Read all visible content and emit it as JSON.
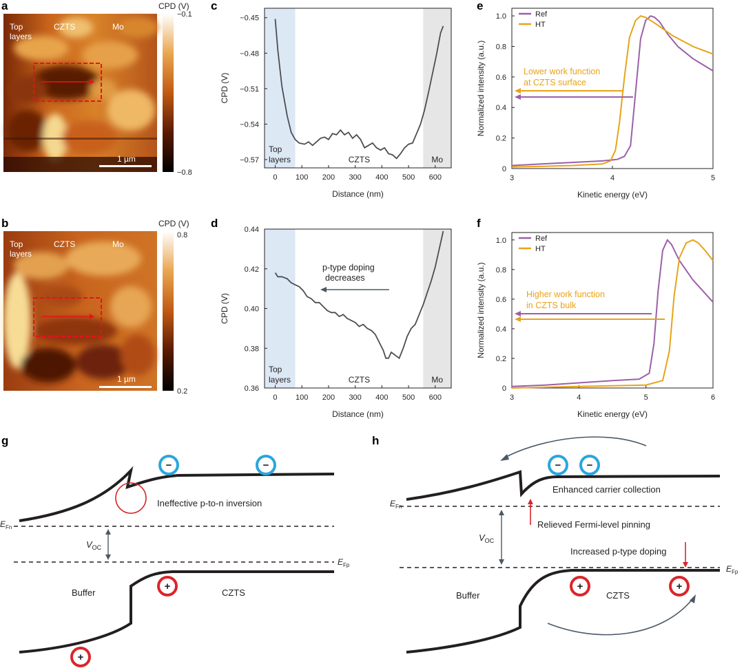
{
  "panels": {
    "a": {
      "label": "a",
      "cbar_title": "CPD (V)",
      "cbar_max": "−0.1",
      "cbar_min": "−0.8",
      "regions": [
        "Top\nlayers",
        "CZTS",
        "Mo"
      ],
      "region_labels": {
        "top": "Top",
        "top2": "layers",
        "czts": "CZTS",
        "mo": "Mo"
      },
      "scale_bar": "1 µm"
    },
    "b": {
      "label": "b",
      "cbar_title": "CPD (V)",
      "cbar_max": "0.8",
      "cbar_min": "0.2",
      "region_labels": {
        "top": "Top",
        "top2": "layers",
        "czts": "CZTS",
        "mo": "Mo"
      },
      "scale_bar": "1 µm"
    },
    "c": {
      "label": "c"
    },
    "d": {
      "label": "d",
      "annotation1": "p-type doping",
      "annotation2": "decreases"
    },
    "e": {
      "label": "e",
      "annotation1": "Lower work function",
      "annotation2": "at CZTS surface"
    },
    "f": {
      "label": "f",
      "annotation1": "Higher work function",
      "annotation2": "in CZTS bulk"
    },
    "g": {
      "label": "g",
      "efn": "E",
      "efn_sub": "Fn",
      "efp": "E",
      "efp_sub": "Fp",
      "voc": "V",
      "voc_sub": "OC",
      "buffer": "Buffer",
      "czts": "CZTS",
      "inversion": "Ineffective p-to-n inversion"
    },
    "h": {
      "label": "h",
      "efn": "E",
      "efn_sub": "Fn",
      "efp": "E",
      "efp_sub": "Fp",
      "voc": "V",
      "voc_sub": "OC",
      "buffer": "Buffer",
      "czts": "CZTS",
      "collection": "Enhanced carrier collection",
      "pinning": "Relieved Fermi-level pinning",
      "doping": "Increased p-type doping"
    }
  },
  "colors": {
    "line": "#4d4d4f",
    "ref": "#9b5fa8",
    "ht": "#e8a317",
    "top_band": "#dde8f5",
    "mo_band": "#e6e6e6",
    "red": "#d9262b",
    "blue": "#2aa6dc",
    "arrow": "#4a5866"
  },
  "chart_data": [
    {
      "id": "c",
      "type": "line",
      "xlabel": "Distance (nm)",
      "ylabel": "CPD (V)",
      "xlim": [
        -40,
        660
      ],
      "ylim": [
        -0.577,
        -0.442
      ],
      "xticks": [
        0,
        100,
        200,
        300,
        400,
        500,
        600
      ],
      "yticks": [
        -0.45,
        -0.48,
        -0.51,
        -0.54,
        -0.57
      ],
      "ytick_labels": [
        "−0.45",
        "−0.48",
        "−0.51",
        "−0.54",
        "−0.57"
      ],
      "regions": [
        {
          "label": "Top layers",
          "label1": "Top",
          "label2": "layers",
          "x0": -40,
          "x1": 75
        },
        {
          "label": "CZTS",
          "x0": 75,
          "x1": 555
        },
        {
          "label": "Mo",
          "x0": 555,
          "x1": 660
        }
      ],
      "x": [
        0,
        10,
        25,
        45,
        60,
        75,
        90,
        110,
        125,
        140,
        155,
        170,
        185,
        200,
        215,
        230,
        245,
        260,
        275,
        290,
        305,
        320,
        335,
        350,
        365,
        380,
        395,
        410,
        425,
        440,
        455,
        470,
        485,
        500,
        515,
        530,
        545,
        560,
        575,
        590,
        605,
        620,
        630
      ],
      "y": [
        -0.451,
        -0.478,
        -0.508,
        -0.533,
        -0.547,
        -0.553,
        -0.556,
        -0.557,
        -0.555,
        -0.558,
        -0.555,
        -0.552,
        -0.551,
        -0.553,
        -0.548,
        -0.549,
        -0.545,
        -0.549,
        -0.547,
        -0.552,
        -0.549,
        -0.553,
        -0.56,
        -0.558,
        -0.556,
        -0.56,
        -0.562,
        -0.56,
        -0.565,
        -0.566,
        -0.569,
        -0.565,
        -0.56,
        -0.557,
        -0.556,
        -0.548,
        -0.54,
        -0.528,
        -0.513,
        -0.497,
        -0.481,
        -0.463,
        -0.457
      ]
    },
    {
      "id": "d",
      "type": "line",
      "xlabel": "Distance (nm)",
      "ylabel": "CPD (V)",
      "xlim": [
        -40,
        660
      ],
      "ylim": [
        0.36,
        0.44
      ],
      "xticks": [
        0,
        100,
        200,
        300,
        400,
        500,
        600
      ],
      "yticks": [
        0.36,
        0.38,
        0.4,
        0.42,
        0.44
      ],
      "ytick_labels": [
        "0.36",
        "0.38",
        "0.40",
        "0.42",
        "0.44"
      ],
      "regions": [
        {
          "label": "Top layers",
          "label1": "Top",
          "label2": "layers",
          "x0": -40,
          "x1": 75
        },
        {
          "label": "CZTS",
          "x0": 75,
          "x1": 555
        },
        {
          "label": "Mo",
          "x0": 555,
          "x1": 660
        }
      ],
      "x": [
        0,
        10,
        25,
        45,
        60,
        75,
        90,
        105,
        120,
        135,
        150,
        165,
        180,
        195,
        210,
        225,
        240,
        255,
        270,
        285,
        300,
        315,
        330,
        345,
        360,
        375,
        390,
        405,
        415,
        425,
        435,
        445,
        455,
        465,
        480,
        495,
        510,
        525,
        540,
        555,
        570,
        585,
        600,
        615,
        630
      ],
      "y": [
        0.418,
        0.416,
        0.416,
        0.415,
        0.413,
        0.412,
        0.411,
        0.409,
        0.406,
        0.405,
        0.403,
        0.403,
        0.401,
        0.399,
        0.398,
        0.398,
        0.396,
        0.397,
        0.395,
        0.394,
        0.393,
        0.391,
        0.392,
        0.39,
        0.389,
        0.387,
        0.383,
        0.379,
        0.375,
        0.375,
        0.378,
        0.377,
        0.376,
        0.375,
        0.38,
        0.386,
        0.39,
        0.392,
        0.397,
        0.402,
        0.408,
        0.414,
        0.421,
        0.43,
        0.439
      ]
    },
    {
      "id": "e",
      "type": "line",
      "xlabel": "Kinetic energy (eV)",
      "ylabel": "Normalized intensity (a.u.)",
      "xlim": [
        3,
        5
      ],
      "ylim": [
        0,
        1.05
      ],
      "xticks": [
        3,
        4,
        5
      ],
      "yticks": [
        0,
        0.2,
        0.4,
        0.6,
        0.8,
        1.0
      ],
      "ytick_labels": [
        "0",
        "0.2",
        "0.4",
        "0.6",
        "0.8",
        "1.0"
      ],
      "legend": "top-left",
      "series": [
        {
          "name": "Ref",
          "x": [
            3.0,
            3.3,
            3.6,
            3.9,
            4.05,
            4.12,
            4.18,
            4.23,
            4.28,
            4.33,
            4.38,
            4.42,
            4.47,
            4.55,
            4.65,
            4.8,
            5.0
          ],
          "y": [
            0.02,
            0.03,
            0.04,
            0.05,
            0.06,
            0.08,
            0.15,
            0.5,
            0.85,
            0.97,
            1.0,
            0.99,
            0.96,
            0.88,
            0.8,
            0.72,
            0.64
          ]
        },
        {
          "name": "HT",
          "x": [
            3.0,
            3.3,
            3.6,
            3.9,
            3.98,
            4.03,
            4.07,
            4.12,
            4.17,
            4.23,
            4.28,
            4.33,
            4.38,
            4.45,
            4.6,
            4.8,
            5.0
          ],
          "y": [
            0.01,
            0.015,
            0.02,
            0.03,
            0.05,
            0.12,
            0.3,
            0.6,
            0.86,
            0.97,
            1.0,
            0.99,
            0.97,
            0.94,
            0.87,
            0.8,
            0.75
          ]
        }
      ]
    },
    {
      "id": "f",
      "type": "line",
      "xlabel": "Kinetic energy (eV)",
      "ylabel": "Normalized intensity (a.u.)",
      "xlim": [
        3,
        6
      ],
      "ylim": [
        0,
        1.05
      ],
      "xticks": [
        3,
        4,
        5,
        6
      ],
      "yticks": [
        0,
        0.2,
        0.4,
        0.6,
        0.8,
        1.0
      ],
      "ytick_labels": [
        "0",
        "0.2",
        "0.4",
        "0.6",
        "0.8",
        "1.0"
      ],
      "legend": "top-left",
      "series": [
        {
          "name": "Ref",
          "x": [
            3.0,
            3.5,
            4.0,
            4.5,
            4.9,
            5.05,
            5.12,
            5.18,
            5.25,
            5.32,
            5.38,
            5.5,
            5.7,
            5.9,
            6.0
          ],
          "y": [
            0.01,
            0.02,
            0.035,
            0.05,
            0.06,
            0.1,
            0.3,
            0.65,
            0.93,
            1.0,
            0.97,
            0.86,
            0.73,
            0.63,
            0.58
          ]
        },
        {
          "name": "HT",
          "x": [
            3.0,
            3.5,
            4.0,
            4.5,
            5.0,
            5.25,
            5.35,
            5.42,
            5.5,
            5.6,
            5.7,
            5.78,
            5.88,
            6.0
          ],
          "y": [
            0.0,
            0.005,
            0.01,
            0.015,
            0.02,
            0.05,
            0.25,
            0.62,
            0.88,
            0.98,
            1.0,
            0.98,
            0.93,
            0.86
          ]
        }
      ]
    }
  ]
}
